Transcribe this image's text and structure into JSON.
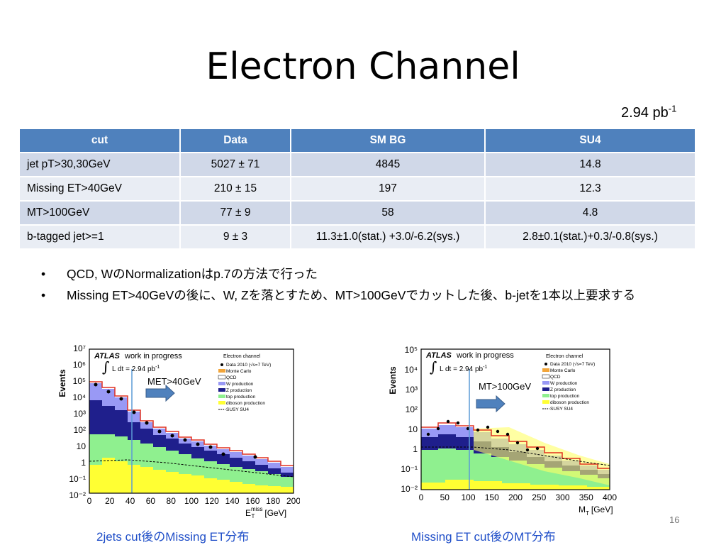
{
  "slide": {
    "title": "Electron Channel",
    "lumi_value": "2.94 pb",
    "lumi_exp": "-1",
    "page_number": "16"
  },
  "table": {
    "headers": [
      "cut",
      "Data",
      "SM BG",
      "SU4"
    ],
    "rows": [
      [
        "jet pT>30,30GeV",
        "5027 ± 71",
        "4845",
        "14.8"
      ],
      [
        "Missing ET>40GeV",
        "210 ± 15",
        "197",
        "12.3"
      ],
      [
        "MT>100GeV",
        "77 ± 9",
        "58",
        "4.8"
      ],
      [
        "b-tagged jet>=1",
        "9 ± 3",
        "11.3±1.0(stat.) +3.0/-6.2(sys.)",
        "2.8±0.1(stat.)+0.3/-0.8(sys.)"
      ]
    ]
  },
  "bullets": [
    "QCD, WのNormalizationはp.7の方法で行った",
    "Missing ET>40GeVの後に、W, Zを落とすため、MT>100GeVでカットした後、b-jetを1本以上要求する"
  ],
  "bullet_line2": "要求する",
  "plots": {
    "left": {
      "ylabel": "Events",
      "atlas": "ATLAS",
      "wip": "work in progress",
      "lumi": "L dt = 2.94 pb",
      "lumi_exp": "-1",
      "channel": "Electron channel",
      "cut_label": "MET>40GeV",
      "xlabel_main": "E",
      "xlabel_sub": "T",
      "xlabel_sup": "miss",
      "xlabel_unit": "[GeV]",
      "xticks": [
        "0",
        "20",
        "40",
        "60",
        "80",
        "100",
        "120",
        "140",
        "160",
        "180",
        "200"
      ],
      "yticks": [
        "10⁷",
        "10⁶",
        "10⁵",
        "10⁴",
        "10³",
        "10²",
        "10",
        "1",
        "10⁻¹",
        "10⁻²"
      ],
      "caption": "2jets cut後のMissing ET分布"
    },
    "right": {
      "ylabel": "Events",
      "atlas": "ATLAS",
      "wip": "work in progress",
      "lumi": "L dt = 2.94 pb",
      "lumi_exp": "-1",
      "channel": "Electron channel",
      "cut_label": "MT>100GeV",
      "xlabel_main": "M",
      "xlabel_sub": "T",
      "xlabel_unit": "[GeV]",
      "xticks": [
        "0",
        "50",
        "100",
        "150",
        "200",
        "250",
        "300",
        "350",
        "400"
      ],
      "yticks": [
        "10⁵",
        "10⁴",
        "10³",
        "10²",
        "10",
        "1",
        "10⁻¹",
        "10⁻²"
      ],
      "caption": "Missing ET cut後のMT分布"
    },
    "legend": [
      "Data 2010 (√s=7 TeV)",
      "Monte Carlo",
      "QCD",
      "W production",
      "Z production",
      "top production",
      "diboson production",
      "SUSY SU4"
    ],
    "colors": {
      "monte_carlo": "#f2a53a",
      "qcd": "#ffffff",
      "w": "#9999f5",
      "z": "#1f1f8c",
      "top": "#8ff08f",
      "diboson": "#ffff33",
      "mc_line": "#e03020",
      "cut_line": "#5b9bd5",
      "arrow": "#4f81bd"
    }
  }
}
